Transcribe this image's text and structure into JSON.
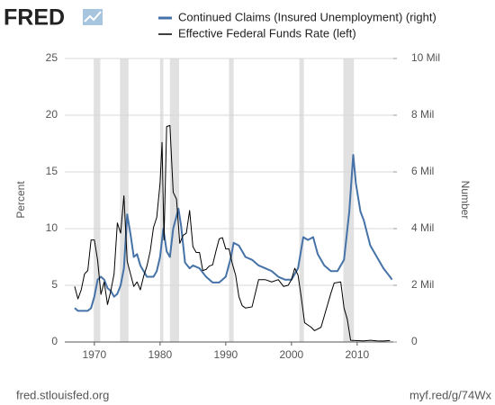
{
  "logo": "FRED",
  "chart_data": {
    "type": "line",
    "ylabel": "Percent",
    "y2label": "Number",
    "xlim": [
      1965.5,
      2015.5
    ],
    "xticks": [
      1970,
      1980,
      1990,
      2000,
      2010
    ],
    "ylim": [
      0,
      25
    ],
    "yticks": [
      0,
      5,
      10,
      15,
      20,
      25
    ],
    "y2lim": [
      0,
      10000000
    ],
    "y2ticks": [
      0,
      {
        "value": 2000000,
        "label": "2 Mil"
      },
      {
        "value": 4000000,
        "label": "4 Mil"
      },
      {
        "value": 6000000,
        "label": "6 Mil"
      },
      {
        "value": 8000000,
        "label": "8 Mil"
      },
      {
        "value": 10000000,
        "label": "10 Mil"
      }
    ],
    "grid": true,
    "recession_color": "#e1e1e1",
    "recessions": [
      [
        1969.9,
        1970.9
      ],
      [
        1973.9,
        1975.2
      ],
      [
        1980.0,
        1980.5
      ],
      [
        1981.5,
        1982.9
      ],
      [
        1990.5,
        1991.2
      ],
      [
        2001.2,
        2001.9
      ],
      [
        2007.9,
        2009.5
      ]
    ],
    "series": [
      {
        "name": "Continued Claims (Insured Unemployment) (right)",
        "color": "#4572a7",
        "axis": "y2",
        "x": [
          1967.0,
          1967.5,
          1968.0,
          1969.0,
          1969.5,
          1970.0,
          1970.5,
          1971.0,
          1971.5,
          1972.0,
          1972.5,
          1973.0,
          1973.5,
          1974.0,
          1974.5,
          1975.0,
          1975.5,
          1976.0,
          1976.5,
          1977.0,
          1978.0,
          1979.0,
          1979.5,
          1980.0,
          1980.5,
          1981.0,
          1981.5,
          1982.0,
          1982.8,
          1983.2,
          1983.8,
          1984.5,
          1985.0,
          1986.0,
          1987.0,
          1988.0,
          1989.0,
          1990.0,
          1990.8,
          1991.2,
          1992.0,
          1993.0,
          1994.0,
          1995.0,
          1996.0,
          1997.0,
          1998.0,
          1999.0,
          2000.0,
          2001.0,
          2001.8,
          2002.5,
          2003.3,
          2004.0,
          2005.0,
          2006.0,
          2007.0,
          2008.0,
          2008.8,
          2009.4,
          2009.8,
          2010.5,
          2011.0,
          2012.0,
          2013.0,
          2014.0,
          2015.0,
          2015.3
        ],
        "values": [
          1200000,
          1100000,
          1100000,
          1100000,
          1200000,
          1600000,
          2200000,
          2300000,
          2200000,
          1900000,
          1800000,
          1600000,
          1700000,
          2000000,
          2600000,
          4500000,
          3800000,
          3000000,
          3100000,
          2700000,
          2300000,
          2300000,
          2500000,
          3000000,
          4000000,
          3200000,
          3000000,
          4000000,
          4700000,
          4100000,
          2800000,
          2600000,
          2700000,
          2600000,
          2300000,
          2100000,
          2100000,
          2300000,
          3000000,
          3500000,
          3400000,
          3000000,
          2900000,
          2700000,
          2600000,
          2500000,
          2300000,
          2200000,
          2200000,
          2600000,
          3700000,
          3600000,
          3700000,
          3100000,
          2700000,
          2500000,
          2500000,
          2900000,
          4600000,
          6600000,
          5600000,
          4600000,
          4300000,
          3400000,
          3000000,
          2600000,
          2300000,
          2200000
        ]
      },
      {
        "name": "Effective Federal Funds Rate (left)",
        "color": "#000000",
        "axis": "y",
        "x": [
          1967.0,
          1967.5,
          1968.0,
          1968.5,
          1969.0,
          1969.5,
          1970.0,
          1970.5,
          1971.0,
          1971.5,
          1972.0,
          1972.5,
          1973.0,
          1973.5,
          1974.0,
          1974.5,
          1975.0,
          1975.5,
          1976.0,
          1976.5,
          1977.0,
          1977.5,
          1978.0,
          1978.5,
          1979.0,
          1979.5,
          1980.0,
          1980.3,
          1980.6,
          1981.0,
          1981.5,
          1982.0,
          1982.5,
          1983.0,
          1983.5,
          1984.0,
          1984.5,
          1985.0,
          1985.5,
          1986.0,
          1986.5,
          1987.0,
          1987.5,
          1988.0,
          1988.5,
          1989.0,
          1989.5,
          1990.0,
          1990.5,
          1991.0,
          1991.5,
          1992.0,
          1992.5,
          1993.0,
          1994.0,
          1994.5,
          1995.0,
          1996.0,
          1997.0,
          1998.0,
          1998.8,
          1999.5,
          2000.0,
          2000.5,
          2001.0,
          2001.5,
          2002.0,
          2003.0,
          2003.5,
          2004.5,
          2005.0,
          2006.0,
          2006.5,
          2007.5,
          2008.0,
          2008.5,
          2009.0,
          2010.0,
          2011.0,
          2012.0,
          2013.0,
          2014.0,
          2015.0
        ],
        "values": [
          4.9,
          3.8,
          4.6,
          6.0,
          6.3,
          9.0,
          9.0,
          7.2,
          4.2,
          5.3,
          3.3,
          4.5,
          6.0,
          10.5,
          9.6,
          12.9,
          7.1,
          6.0,
          4.9,
          5.3,
          4.6,
          5.8,
          6.7,
          8.0,
          10.1,
          11.0,
          14.0,
          17.6,
          9.0,
          19.0,
          19.1,
          13.2,
          12.6,
          8.7,
          9.4,
          9.6,
          11.6,
          8.4,
          7.9,
          7.9,
          6.3,
          6.4,
          6.7,
          6.8,
          8.0,
          9.1,
          9.2,
          8.2,
          8.2,
          6.9,
          5.9,
          4.0,
          3.2,
          3.0,
          3.1,
          4.3,
          5.5,
          5.5,
          5.3,
          5.5,
          4.9,
          5.0,
          5.5,
          6.5,
          5.9,
          3.9,
          1.7,
          1.3,
          1.0,
          1.3,
          2.3,
          4.3,
          5.2,
          5.3,
          3.0,
          2.0,
          0.15,
          0.12,
          0.1,
          0.15,
          0.1,
          0.09,
          0.13
        ]
      }
    ],
    "source": "fred.stlouisfed.org",
    "link": "myf.red/g/74Wx"
  }
}
